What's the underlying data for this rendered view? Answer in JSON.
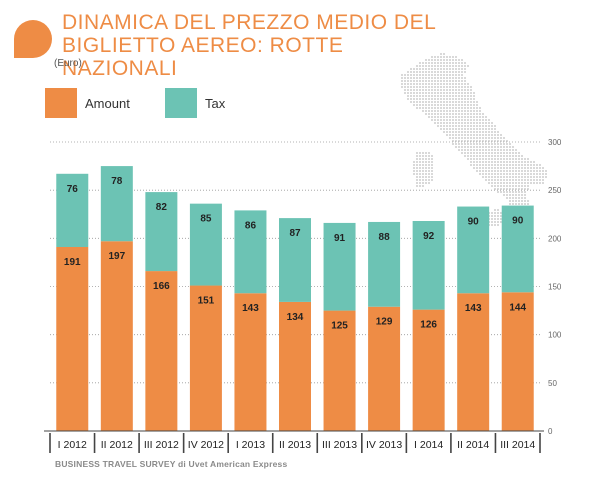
{
  "title": "DINAMICA DEL PREZZO MEDIO DEL BIGLIETTO AEREO: ROTTE NAZIONALI",
  "subtitle": "(Euro)",
  "footer": "BUSINESS TRAVEL SURVEY di Uvet American Express",
  "colors": {
    "amount": "#ee8c45",
    "tax": "#6cc3b4",
    "accent": "#ee8c45"
  },
  "legend": {
    "amount": "Amount",
    "tax": "Tax"
  },
  "chart_data": {
    "type": "bar",
    "stacked": true,
    "categories": [
      "I 2012",
      "II 2012",
      "III 2012",
      "IV 2012",
      "I 2013",
      "II 2013",
      "III 2013",
      "IV 2013",
      "I 2014",
      "II 2014",
      "III 2014"
    ],
    "series": [
      {
        "name": "Amount",
        "values": [
          191,
          197,
          166,
          151,
          143,
          134,
          125,
          129,
          126,
          143,
          144
        ]
      },
      {
        "name": "Tax",
        "values": [
          76,
          78,
          82,
          85,
          86,
          87,
          91,
          88,
          92,
          90,
          90
        ]
      }
    ],
    "ylim": [
      0,
      300
    ],
    "yticks": [
      0,
      50,
      100,
      150,
      200,
      250,
      300
    ],
    "axis_side": "right",
    "gridlines": "dotted",
    "legend_position": "top-left"
  }
}
